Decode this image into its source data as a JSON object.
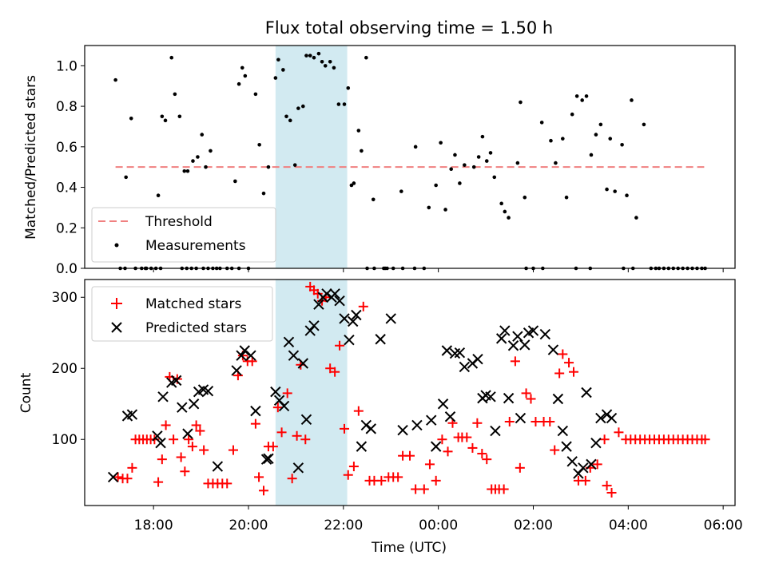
{
  "chart_data": {
    "type": "scatter",
    "title": "Flux total observing time = 1.50 h",
    "xlabel": "Time (UTC)",
    "x_ticks": [
      "18:00",
      "20:00",
      "22:00",
      "00:00",
      "02:00",
      "04:00",
      "06:00"
    ],
    "x_range_hours": [
      16.55,
      30.25
    ],
    "shaded_interval_hours": [
      20.57,
      22.08
    ],
    "shade_color": "#add8e6",
    "panels": [
      {
        "ylabel": "Matched/Predicted stars",
        "ylim": [
          0,
          1.1
        ],
        "y_ticks": [
          "0.0",
          "0.2",
          "0.4",
          "0.6",
          "0.8",
          "1.0"
        ],
        "y_tick_values": [
          0,
          0.2,
          0.4,
          0.6,
          0.8,
          1.0
        ],
        "legend_position": "lower-left",
        "threshold": {
          "name": "Threshold",
          "value": 0.5,
          "x_start": 17.2,
          "x_end": 29.6,
          "color": "#f08080"
        },
        "series": [
          {
            "name": "Measurements",
            "marker": "dot",
            "color": "#000000",
            "x": [
              17.2,
              17.42,
              17.53,
              17.62,
              17.83,
              18.1,
              18.18,
              18.25,
              18.38,
              18.45,
              18.55,
              18.65,
              18.72,
              18.83,
              18.93,
              19.02,
              19.1,
              19.2,
              19.33,
              19.72,
              19.8,
              19.87,
              19.93,
              20.0,
              20.15,
              20.23,
              20.32,
              20.42,
              20.57,
              20.63,
              20.73,
              20.8,
              20.88,
              20.98,
              21.05,
              21.15,
              21.22,
              21.3,
              21.38,
              21.48,
              21.55,
              21.62,
              21.72,
              21.8,
              21.9,
              22.02,
              22.1,
              22.17,
              22.22,
              22.32,
              22.38,
              22.48,
              22.63,
              22.88,
              22.92,
              23.22,
              23.52,
              23.8,
              23.95,
              24.05,
              24.15,
              24.27,
              24.35,
              24.45,
              24.55,
              24.75,
              24.85,
              24.93,
              25.02,
              25.1,
              25.18,
              25.33,
              25.4,
              25.48,
              25.67,
              25.73,
              25.82,
              26.18,
              26.37,
              26.47,
              26.62,
              26.7,
              26.82,
              26.92,
              27.03,
              27.12,
              27.22,
              27.32,
              27.42,
              27.55,
              27.62,
              27.72,
              27.87,
              27.97,
              28.07,
              28.17,
              28.33,
              28.48,
              28.58
            ],
            "y": [
              0.93,
              0.45,
              0.74,
              0.0,
              0.0,
              0.36,
              0.75,
              0.73,
              1.04,
              0.86,
              0.75,
              0.48,
              0.48,
              0.53,
              0.55,
              0.66,
              0.5,
              0.58,
              0.0,
              0.43,
              0.91,
              0.99,
              0.95,
              0.0,
              0.86,
              0.61,
              0.37,
              0.5,
              0.94,
              1.03,
              0.98,
              0.75,
              0.73,
              0.51,
              0.79,
              0.8,
              1.05,
              1.05,
              1.04,
              1.06,
              1.02,
              1.0,
              1.02,
              0.99,
              0.81,
              0.81,
              0.89,
              0.41,
              0.42,
              0.68,
              0.58,
              1.04,
              0.34,
              0.0,
              0.0,
              0.38,
              0.6,
              0.3,
              0.41,
              0.62,
              0.29,
              0.49,
              0.56,
              0.42,
              0.51,
              0.5,
              0.55,
              0.65,
              0.53,
              0.57,
              0.45,
              0.32,
              0.28,
              0.25,
              0.52,
              0.82,
              0.35,
              0.72,
              0.63,
              0.52,
              0.64,
              0.35,
              0.76,
              0.85,
              0.83,
              0.85,
              0.56,
              0.66,
              0.71,
              0.39,
              0.64,
              0.38,
              0.61,
              0.36,
              0.83,
              0.25,
              0.71,
              0.0,
              0.0
            ]
          },
          {
            "name": "",
            "marker": "dot",
            "color": "#000000",
            "x": [
              17.3,
              17.4,
              17.75,
              17.85,
              17.95,
              18.05,
              18.15,
              18.6,
              18.7,
              18.8,
              18.9,
              19.05,
              19.15,
              19.25,
              19.4,
              19.55,
              19.65,
              19.8,
              22.5,
              22.65,
              22.85,
              23.05,
              23.25,
              23.5,
              23.7,
              25.85,
              26.0,
              26.2,
              26.9,
              27.2,
              27.9,
              28.1,
              28.65,
              28.75,
              28.85,
              28.95,
              29.05,
              29.15,
              29.25,
              29.35,
              29.45,
              29.55,
              29.62
            ],
            "y": [
              0,
              0,
              0,
              0,
              0,
              0,
              0,
              0,
              0,
              0,
              0,
              0,
              0,
              0,
              0,
              0,
              0,
              0,
              0,
              0,
              0,
              0,
              0,
              0,
              0,
              0,
              0,
              0,
              0,
              0,
              0,
              0,
              0,
              0,
              0,
              0,
              0,
              0,
              0,
              0,
              0,
              0,
              0
            ]
          }
        ]
      },
      {
        "ylabel": "Count",
        "ylim": [
          7,
          325
        ],
        "y_ticks": [
          "100",
          "200",
          "300"
        ],
        "y_tick_values": [
          100,
          200,
          300
        ],
        "legend_position": "upper-left",
        "series": [
          {
            "name": "Matched stars",
            "marker": "plus",
            "color": "#ff0000",
            "x": [
              17.25,
              17.35,
              17.45,
              17.55,
              17.62,
              17.7,
              17.78,
              17.86,
              17.94,
              18.02,
              18.1,
              18.18,
              18.26,
              18.34,
              18.42,
              18.5,
              18.58,
              18.66,
              18.74,
              18.82,
              18.9,
              18.98,
              19.06,
              19.15,
              19.25,
              19.35,
              19.45,
              19.55,
              19.68,
              19.78,
              19.88,
              19.98,
              20.08,
              20.15,
              20.22,
              20.32,
              20.42,
              20.52,
              20.62,
              20.7,
              20.82,
              20.92,
              21.02,
              21.1,
              21.2,
              21.3,
              21.38,
              21.46,
              21.55,
              21.63,
              21.72,
              21.82,
              21.92,
              22.02,
              22.1,
              22.22,
              22.32,
              22.42,
              22.55,
              22.65,
              22.8,
              22.95,
              23.05,
              23.15,
              23.25,
              23.4,
              23.52,
              23.7,
              23.82,
              23.95,
              24.08,
              24.2,
              24.3,
              24.42,
              24.5,
              24.6,
              24.72,
              24.82,
              24.92,
              25.02,
              25.12,
              25.2,
              25.28,
              25.38,
              25.5,
              25.62,
              25.72,
              25.85,
              25.95,
              26.05,
              26.22,
              26.35,
              26.45,
              26.55,
              26.62,
              26.75,
              26.85,
              26.95,
              27.1,
              27.2,
              27.35,
              27.5
            ],
            "y": [
              47,
              45,
              45,
              60,
              100,
              100,
              100,
              100,
              100,
              100,
              40,
              72,
              120,
              188,
              100,
              185,
              75,
              55,
              100,
              90,
              120,
              112,
              85,
              38,
              38,
              38,
              38,
              38,
              85,
              190,
              218,
              210,
              210,
              122,
              47,
              28,
              90,
              90,
              145,
              110,
              165,
              45,
              105,
              205,
              100,
              315,
              310,
              305,
              295,
              300,
              200,
              195,
              232,
              115,
              50,
              62,
              140,
              287,
              42,
              42,
              42,
              47,
              47,
              47,
              77,
              77,
              30,
              30,
              65,
              42,
              100,
              83,
              123,
              103,
              103,
              103,
              88,
              123,
              80,
              72,
              30,
              30,
              30,
              30,
              125,
              210,
              60,
              165,
              157,
              125,
              125,
              125,
              85,
              193,
              220,
              208,
              195,
              42,
              42,
              60,
              65,
              100
            ]
          },
          {
            "name": "",
            "marker": "plus",
            "color": "#ff0000",
            "x": [
              27.55,
              27.65,
              28.05,
              28.15,
              28.25,
              28.35,
              28.45,
              28.55,
              28.65,
              28.75,
              28.85,
              28.95,
              29.05,
              29.15,
              29.25,
              29.35,
              29.45,
              29.55,
              29.62,
              27.8,
              27.95
            ],
            "y": [
              35,
              25,
              100,
              100,
              100,
              100,
              100,
              100,
              100,
              100,
              100,
              100,
              100,
              100,
              100,
              100,
              100,
              100,
              100,
              110,
              100
            ]
          },
          {
            "name": "Predicted stars",
            "marker": "cross",
            "color": "#000000",
            "x": [
              17.15,
              17.45,
              17.55,
              18.08,
              18.15,
              18.2,
              18.38,
              18.48,
              18.6,
              18.72,
              18.85,
              18.95,
              19.05,
              19.15,
              19.35,
              19.75,
              19.85,
              19.92,
              20.05,
              20.15,
              20.38,
              20.42,
              20.57,
              20.65,
              20.75,
              20.85,
              20.95,
              21.05,
              21.15,
              21.22,
              21.3,
              21.38,
              21.48,
              21.57,
              21.65,
              21.75,
              21.82,
              21.92,
              22.02,
              22.12,
              22.2,
              22.27,
              22.38,
              22.48,
              22.58,
              22.78,
              23.0,
              23.25,
              23.55,
              23.85,
              23.95,
              24.1,
              24.18,
              24.25,
              24.35,
              24.45,
              24.55,
              24.72,
              24.83,
              24.93,
              25.0,
              25.1,
              25.2,
              25.33,
              25.4,
              25.48,
              25.58,
              25.67,
              25.73,
              25.82,
              25.9,
              26.0,
              26.25,
              26.42,
              26.52,
              26.62,
              26.7,
              26.82,
              26.95,
              27.05,
              27.12,
              27.22,
              27.32,
              27.42,
              27.55,
              27.65
            ],
            "y": [
              47,
              133,
              135,
              105,
              95,
              160,
              180,
              183,
              145,
              108,
              150,
              167,
              170,
              168,
              62,
              197,
              218,
              225,
              218,
              140,
              72,
              73,
              167,
              155,
              147,
              237,
              218,
              60,
              207,
              128,
              253,
              260,
              290,
              300,
              305,
              300,
              305,
              295,
              270,
              240,
              266,
              275,
              90,
              120,
              115,
              241,
              270,
              113,
              120,
              127,
              90,
              150,
              225,
              132,
              221,
              222,
              202,
              207,
              213,
              158,
              162,
              160,
              112,
              242,
              253,
              158,
              232,
              245,
              130,
              233,
              250,
              253,
              248,
              226,
              157,
              112,
              90,
              69,
              52,
              60,
              166,
              65,
              95,
              130,
              135,
              130
            ]
          }
        ]
      }
    ]
  }
}
